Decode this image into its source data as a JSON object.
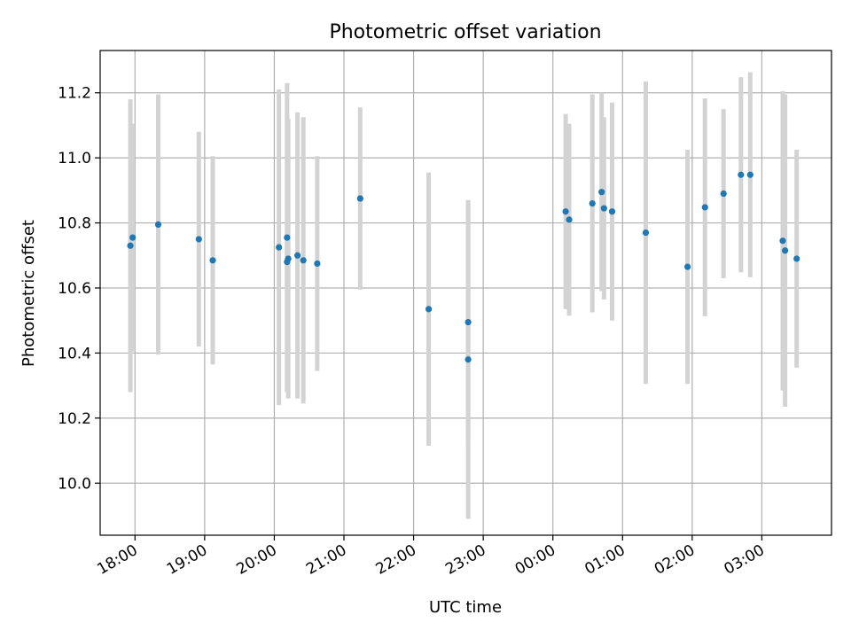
{
  "chart_data": {
    "type": "scatter",
    "title": "Photometric offset variation",
    "xlabel": "UTC time",
    "ylabel": "Photometric offset",
    "x_start_label": "17:30",
    "x_end_label": "04:00",
    "ylim": [
      9.84,
      11.33
    ],
    "grid": true,
    "legend": "none",
    "xticks": [
      "18:00",
      "19:00",
      "20:00",
      "21:00",
      "22:00",
      "23:00",
      "00:00",
      "01:00",
      "02:00",
      "03:00"
    ],
    "yticks": [
      10.0,
      10.2,
      10.4,
      10.6,
      10.8,
      11.0,
      11.2
    ],
    "colors": {
      "marker": "#1f77b4",
      "errorbar": "#d3d3d3"
    },
    "series": [
      {
        "points": [
          {
            "t": "17:56",
            "y": 10.73,
            "err": 0.45
          },
          {
            "t": "17:58",
            "y": 10.755,
            "err": 0.35
          },
          {
            "t": "18:20",
            "y": 10.795,
            "err": 0.4
          },
          {
            "t": "18:55",
            "y": 10.75,
            "err": 0.33
          },
          {
            "t": "19:07",
            "y": 10.685,
            "err": 0.32
          },
          {
            "t": "20:04",
            "y": 10.725,
            "err": 0.485
          },
          {
            "t": "20:11",
            "y": 10.755,
            "err": 0.475
          },
          {
            "t": "20:11",
            "y": 10.68,
            "err": 0.08
          },
          {
            "t": "20:12",
            "y": 10.69,
            "err": 0.43
          },
          {
            "t": "20:20",
            "y": 10.7,
            "err": 0.44
          },
          {
            "t": "20:25",
            "y": 10.685,
            "err": 0.44
          },
          {
            "t": "20:37",
            "y": 10.675,
            "err": 0.33
          },
          {
            "t": "21:14",
            "y": 10.875,
            "err": 0.28
          },
          {
            "t": "22:13",
            "y": 10.535,
            "err": 0.42
          },
          {
            "t": "22:47",
            "y": 10.495,
            "err": 0.375
          },
          {
            "t": "22:47",
            "y": 10.38,
            "err": 0.49
          },
          {
            "t": "00:11",
            "y": 10.835,
            "err": 0.3
          },
          {
            "t": "00:14",
            "y": 10.81,
            "err": 0.295
          },
          {
            "t": "00:34",
            "y": 10.86,
            "err": 0.335
          },
          {
            "t": "00:42",
            "y": 10.895,
            "err": 0.305
          },
          {
            "t": "00:44",
            "y": 10.845,
            "err": 0.28
          },
          {
            "t": "00:51",
            "y": 10.835,
            "err": 0.335
          },
          {
            "t": "01:20",
            "y": 10.77,
            "err": 0.465
          },
          {
            "t": "01:56",
            "y": 10.665,
            "err": 0.36
          },
          {
            "t": "02:11",
            "y": 10.848,
            "err": 0.335
          },
          {
            "t": "02:27",
            "y": 10.89,
            "err": 0.26
          },
          {
            "t": "02:42",
            "y": 10.948,
            "err": 0.3
          },
          {
            "t": "02:50",
            "y": 10.948,
            "err": 0.315
          },
          {
            "t": "03:18",
            "y": 10.745,
            "err": 0.46
          },
          {
            "t": "03:20",
            "y": 10.715,
            "err": 0.48
          },
          {
            "t": "03:30",
            "y": 10.69,
            "err": 0.335
          }
        ]
      }
    ]
  }
}
